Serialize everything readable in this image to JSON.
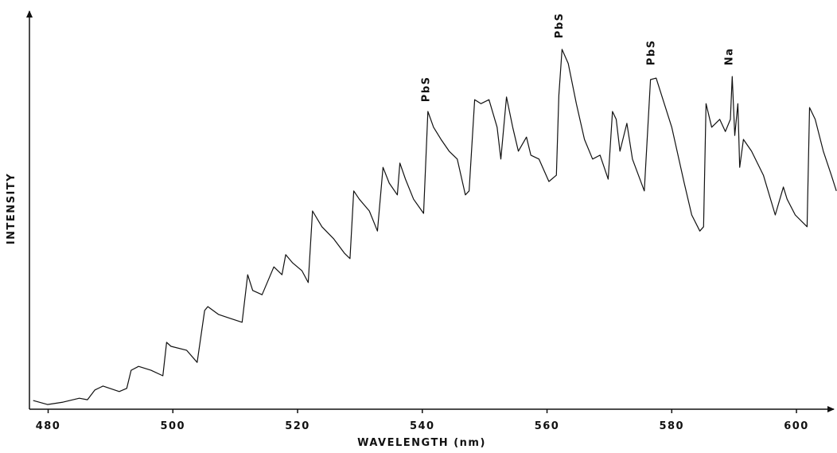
{
  "chart_data": {
    "type": "line",
    "xlabel": "WAVELENGTH (nm)",
    "ylabel": "INTENSITY",
    "xlim": [
      477,
      606.5
    ],
    "ylim": [
      0,
      100
    ],
    "xticks": [
      480,
      500,
      520,
      540,
      560,
      580,
      600
    ],
    "color": "#111111",
    "x": [
      477.6,
      479.9,
      482.4,
      485.0,
      486.3,
      487.5,
      488.8,
      491.4,
      492.6,
      493.3,
      494.5,
      496.5,
      498.4,
      499.0,
      499.7,
      502.2,
      503.9,
      505.1,
      505.6,
      507.3,
      509.2,
      511.1,
      512.0,
      512.8,
      514.3,
      516.2,
      517.5,
      518.1,
      519.2,
      520.7,
      521.7,
      522.4,
      523.9,
      525.8,
      527.5,
      528.4,
      529.0,
      529.9,
      531.5,
      532.8,
      533.7,
      534.7,
      536.0,
      536.4,
      537.3,
      538.6,
      540.2,
      540.9,
      541.8,
      543.0,
      544.3,
      545.6,
      546.9,
      547.5,
      548.4,
      549.4,
      550.7,
      552.0,
      552.6,
      553.5,
      554.5,
      555.4,
      556.7,
      557.4,
      558.7,
      560.3,
      561.5,
      561.9,
      562.4,
      563.4,
      564.7,
      566.0,
      567.3,
      568.5,
      569.8,
      570.5,
      571.1,
      571.7,
      572.8,
      573.7,
      575.6,
      576.6,
      577.5,
      578.8,
      580.0,
      582.0,
      583.2,
      584.5,
      585.1,
      585.5,
      586.4,
      587.7,
      588.6,
      589.4,
      589.7,
      590.1,
      590.6,
      590.9,
      591.5,
      592.8,
      594.7,
      596.6,
      597.9,
      598.5,
      599.8,
      601.7,
      602.1,
      603.0,
      604.3,
      605.6,
      606.4
    ],
    "values": [
      2.2,
      1.2,
      1.8,
      2.8,
      2.4,
      4.9,
      5.9,
      4.5,
      5.3,
      9.9,
      10.9,
      9.9,
      8.5,
      17.0,
      16.0,
      15.0,
      11.9,
      25.1,
      26.1,
      24.1,
      23.1,
      22.1,
      34.2,
      30.2,
      29.1,
      36.2,
      34.2,
      39.3,
      37.2,
      35.2,
      32.2,
      50.4,
      46.4,
      43.3,
      39.7,
      38.3,
      55.5,
      53.4,
      50.4,
      45.3,
      61.5,
      57.5,
      54.5,
      62.6,
      58.5,
      53.4,
      49.8,
      75.7,
      71.7,
      68.6,
      65.6,
      63.6,
      54.5,
      55.5,
      78.7,
      77.7,
      78.7,
      71.7,
      63.6,
      79.4,
      71.7,
      65.6,
      69.2,
      64.6,
      63.6,
      57.9,
      59.5,
      79.8,
      91.5,
      87.9,
      77.7,
      68.6,
      63.6,
      64.6,
      58.5,
      75.7,
      73.7,
      65.6,
      72.7,
      63.6,
      55.5,
      83.8,
      84.2,
      77.7,
      71.7,
      57.5,
      49.4,
      45.3,
      46.4,
      77.7,
      71.7,
      73.7,
      70.6,
      73.7,
      84.6,
      69.6,
      77.7,
      61.5,
      68.6,
      65.6,
      59.5,
      49.4,
      56.5,
      53.4,
      49.4,
      46.4,
      76.7,
      73.7,
      65.6,
      59.5,
      55.5
    ],
    "annotations": [
      {
        "text": "PbS",
        "x": 541.1,
        "y": 78.1
      },
      {
        "text": "PbS",
        "x": 562.5,
        "y": 94.3
      },
      {
        "text": "PbS",
        "x": 577.2,
        "y": 87.4
      },
      {
        "text": "Na",
        "x": 589.7,
        "y": 87.4
      }
    ]
  }
}
